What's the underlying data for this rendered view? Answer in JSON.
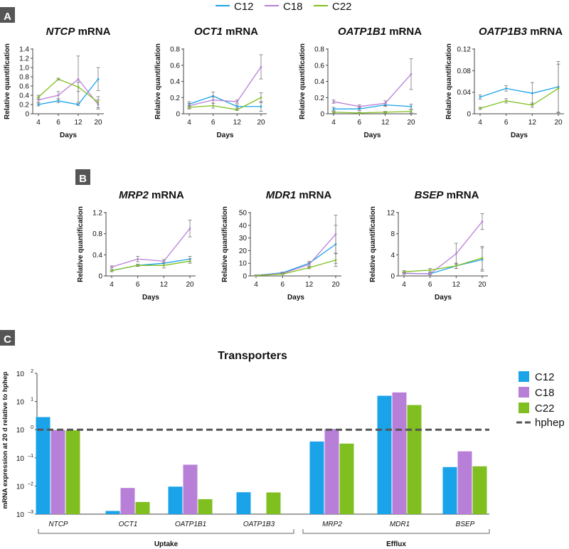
{
  "figure": {
    "legend": [
      {
        "name": "C12",
        "color": "#1aa3e8"
      },
      {
        "name": "C18",
        "color": "#b87fd8"
      },
      {
        "name": "C22",
        "color": "#7fbf1f"
      }
    ],
    "panel_labels": {
      "a": "A",
      "b": "B",
      "c": "C"
    }
  },
  "chart_data": [
    {
      "id": "ntcp",
      "type": "line",
      "gene": "NTCP",
      "title_suffix": " mRNA",
      "x": [
        4,
        6,
        12,
        20
      ],
      "xlabel": "Days",
      "ylabel": "Relative quantification",
      "ylim": [
        0,
        1.4
      ],
      "yticks": [
        "0",
        "0.2",
        "0.4",
        "0.6",
        "0.8",
        "1.0",
        "1.2",
        "1.4"
      ],
      "series": [
        {
          "name": "C12",
          "values": [
            0.2,
            0.28,
            0.2,
            0.75
          ],
          "errors": [
            0.03,
            0.04,
            0.02,
            0.25
          ]
        },
        {
          "name": "C18",
          "values": [
            0.3,
            0.4,
            0.75,
            0.2
          ],
          "errors": [
            0.05,
            0.08,
            0.5,
            0.1
          ]
        },
        {
          "name": "C22",
          "values": [
            0.36,
            0.75,
            0.58,
            0.25
          ],
          "errors": [
            0.04,
            0.02,
            0.1,
            0.12
          ]
        }
      ]
    },
    {
      "id": "oct1",
      "type": "line",
      "gene": "OCT1",
      "title_suffix": " mRNA",
      "x": [
        4,
        6,
        12,
        20
      ],
      "xlabel": "Days",
      "ylabel": "Relative quantification",
      "ylim": [
        0,
        0.8
      ],
      "yticks": [
        "0",
        "0.2",
        "0.4",
        "0.6",
        "0.8"
      ],
      "series": [
        {
          "name": "C12",
          "values": [
            0.12,
            0.22,
            0.09,
            0.09
          ],
          "errors": [
            0.03,
            0.05,
            0.02,
            0.06
          ]
        },
        {
          "name": "C18",
          "values": [
            0.1,
            0.17,
            0.15,
            0.58
          ],
          "errors": [
            0.03,
            0.04,
            0.02,
            0.15
          ]
        },
        {
          "name": "C22",
          "values": [
            0.08,
            0.1,
            0.05,
            0.2
          ],
          "errors": [
            0.02,
            0.03,
            0.01,
            0.06
          ]
        }
      ]
    },
    {
      "id": "oatp1b1",
      "type": "line",
      "gene": "OATP1B1",
      "title_suffix": " mRNA",
      "x": [
        4,
        6,
        12,
        20
      ],
      "xlabel": "Days",
      "ylabel": "Relative quantification",
      "ylim": [
        0,
        0.8
      ],
      "yticks": [
        "0",
        "0.2",
        "0.4",
        "0.6",
        "0.8"
      ],
      "series": [
        {
          "name": "C12",
          "values": [
            0.06,
            0.06,
            0.11,
            0.09
          ],
          "errors": [
            0.02,
            0.02,
            0.02,
            0.03
          ]
        },
        {
          "name": "C18",
          "values": [
            0.15,
            0.09,
            0.13,
            0.49
          ],
          "errors": [
            0.02,
            0.02,
            0.03,
            0.19
          ]
        },
        {
          "name": "C22",
          "values": [
            0.02,
            0.01,
            0.02,
            0.03
          ],
          "errors": [
            0.01,
            0.01,
            0.01,
            0.02
          ]
        }
      ]
    },
    {
      "id": "oatp1b3",
      "type": "line",
      "gene": "OATP1B3",
      "title_suffix": " mRNA",
      "x": [
        4,
        6,
        12,
        20
      ],
      "xlabel": "Days",
      "ylabel": "Relative quantification",
      "ylim": [
        0,
        0.12
      ],
      "yticks": [
        "0",
        "0.04",
        "0.08",
        "0.12"
      ],
      "series": [
        {
          "name": "C12",
          "values": [
            0.031,
            0.047,
            0.038,
            0.05
          ],
          "errors": [
            0.004,
            0.005,
            0.02,
            0.047
          ]
        },
        {
          "name": "C18",
          "values": [
            null,
            null,
            null,
            null
          ],
          "errors": [
            0,
            0,
            0,
            0
          ]
        },
        {
          "name": "C22",
          "values": [
            0.01,
            0.024,
            0.016,
            0.047
          ],
          "errors": [
            0.002,
            0.004,
            0.004,
            0.045
          ]
        }
      ]
    },
    {
      "id": "mrp2",
      "type": "line",
      "gene": "MRP2",
      "title_suffix": " mRNA",
      "x": [
        4,
        6,
        12,
        20
      ],
      "xlabel": "Days",
      "ylabel": "Relative quantification",
      "ylim": [
        0,
        1.2
      ],
      "yticks": [
        "0",
        "0.4",
        "0.8",
        "1.2"
      ],
      "series": [
        {
          "name": "C12",
          "values": [
            0.1,
            0.2,
            0.24,
            0.32
          ],
          "errors": [
            0.02,
            0.02,
            0.04,
            0.05
          ]
        },
        {
          "name": "C18",
          "values": [
            0.17,
            0.32,
            0.28,
            0.9
          ],
          "errors": [
            0.02,
            0.05,
            0.03,
            0.16
          ]
        },
        {
          "name": "C22",
          "values": [
            0.1,
            0.2,
            0.2,
            0.28
          ],
          "errors": [
            0.02,
            0.02,
            0.05,
            0.04
          ]
        }
      ]
    },
    {
      "id": "mdr1",
      "type": "line",
      "gene": "MDR1",
      "title_suffix": " mRNA",
      "x": [
        4,
        6,
        12,
        20
      ],
      "xlabel": "Days",
      "ylabel": "Relative quantification",
      "ylim": [
        0,
        50
      ],
      "yticks": [
        "0",
        "10",
        "20",
        "30",
        "40",
        "50"
      ],
      "series": [
        {
          "name": "C12",
          "values": [
            0.5,
            2.5,
            10,
            25
          ],
          "errors": [
            0.2,
            0.5,
            1.5,
            15
          ]
        },
        {
          "name": "C18",
          "values": [
            0.5,
            2,
            9,
            33
          ],
          "errors": [
            0.2,
            0.5,
            1.5,
            15
          ]
        },
        {
          "name": "C22",
          "values": [
            0.3,
            1.5,
            6.5,
            12.5
          ],
          "errors": [
            0.1,
            0.3,
            0.8,
            5
          ]
        }
      ]
    },
    {
      "id": "bsep",
      "type": "line",
      "gene": "BSEP",
      "title_suffix": " mRNA",
      "x": [
        4,
        6,
        12,
        20
      ],
      "xlabel": "Days",
      "ylabel": "Relative quantification",
      "ylim": [
        0,
        12
      ],
      "yticks": [
        "0",
        "4",
        "8",
        "12"
      ],
      "series": [
        {
          "name": "C12",
          "values": [
            0.5,
            0.4,
            1.9,
            3.1
          ],
          "errors": [
            0.2,
            0.2,
            0.5,
            2.2
          ]
        },
        {
          "name": "C18",
          "values": [
            0.5,
            0.4,
            4.2,
            10.3
          ],
          "errors": [
            0.2,
            0.2,
            2,
            1.5
          ]
        },
        {
          "name": "C22",
          "values": [
            0.8,
            1.1,
            1.9,
            3.4
          ],
          "errors": [
            0.2,
            0.3,
            0.5,
            2.2
          ]
        }
      ]
    },
    {
      "id": "transporters",
      "type": "bar",
      "title": "Transporters",
      "yscale": "log",
      "ylabel": "mRNA expression at 20 d relative to hphep",
      "ylim": [
        0.001,
        100
      ],
      "yticks": [
        {
          "base": "10",
          "exp": "2"
        },
        {
          "base": "10",
          "exp": "1"
        },
        {
          "base": "10",
          "exp": "0"
        },
        {
          "base": "10",
          "exp": "–1"
        },
        {
          "base": "10",
          "exp": "–2"
        },
        {
          "base": "10",
          "exp": "–3"
        }
      ],
      "categories": [
        "NTCP",
        "OCT1",
        "OATP1B1",
        "OATP1B3",
        "MRP2",
        "MDR1",
        "BSEP"
      ],
      "series": [
        {
          "name": "C12",
          "values": [
            2.8,
            0.0013,
            0.0095,
            0.006,
            0.38,
            16,
            0.047
          ]
        },
        {
          "name": "C18",
          "values": [
            0.97,
            0.0085,
            0.057,
            null,
            1.05,
            21,
            0.17
          ]
        },
        {
          "name": "C22",
          "values": [
            0.95,
            0.0027,
            0.0034,
            0.0059,
            0.32,
            7.5,
            0.05
          ]
        }
      ],
      "reference_line": {
        "name": "hphep",
        "value": 1
      },
      "groups": [
        {
          "label": "Uptake",
          "categories": [
            "NTCP",
            "OCT1",
            "OATP1B1",
            "OATP1B3"
          ]
        },
        {
          "label": "Efflux",
          "categories": [
            "MRP2",
            "MDR1",
            "BSEP"
          ]
        }
      ]
    }
  ]
}
